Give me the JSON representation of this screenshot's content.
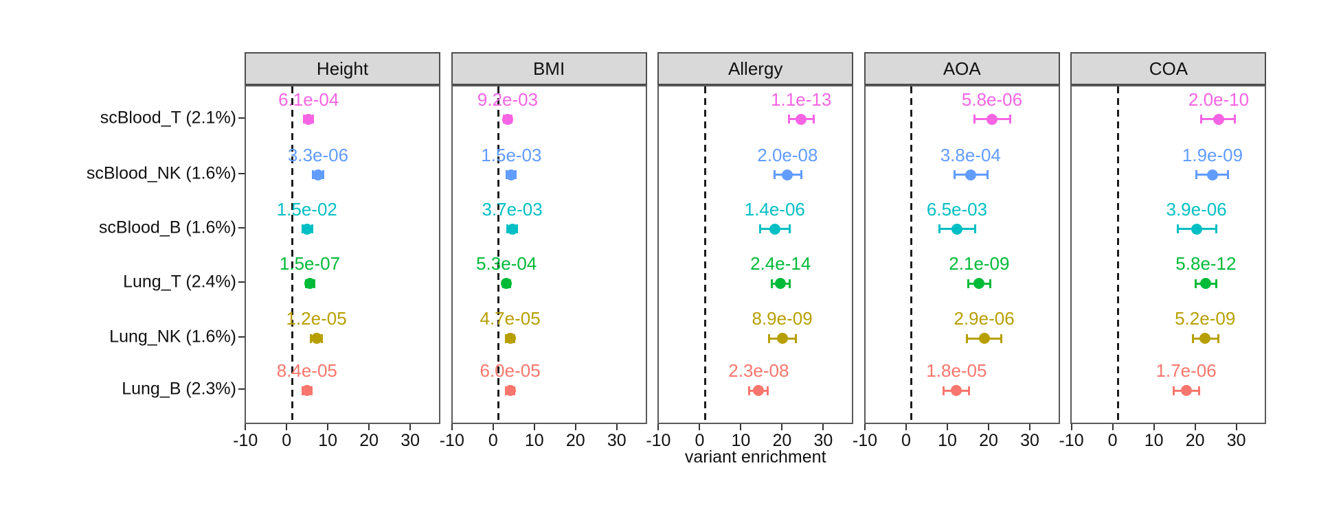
{
  "chart_data": {
    "type": "scatter",
    "subtype": "faceted_dot_plot_with_error_bars",
    "title": "",
    "xlabel": "variant enrichment",
    "ylabel": "",
    "x_ticks": [
      -10,
      0,
      10,
      20,
      30
    ],
    "xlim": [
      -10.2,
      37.3
    ],
    "reference_line_x": 1,
    "grid": "off",
    "strip_background": "#d9d9d9",
    "categories": [
      "scBlood_T (2.1%)",
      "scBlood_NK (1.6%)",
      "scBlood_B (1.6%)",
      "Lung_T (2.4%)",
      "Lung_NK (1.6%)",
      "Lung_B (2.3%)"
    ],
    "category_colors": [
      "#F564E3",
      "#619CFF",
      "#00BFC4",
      "#00BA38",
      "#B79F00",
      "#F8766D"
    ],
    "facets": [
      "Height",
      "BMI",
      "Allergy",
      "AOA",
      "COA"
    ],
    "series": [
      {
        "name": "Height",
        "points": [
          {
            "category": "scBlood_T (2.1%)",
            "x": 5.0,
            "ci": [
              3.9,
              6.1
            ],
            "p_label": "6.1e-04"
          },
          {
            "category": "scBlood_NK (1.6%)",
            "x": 7.3,
            "ci": [
              6.1,
              8.6
            ],
            "p_label": "3.3e-06"
          },
          {
            "category": "scBlood_B (1.6%)",
            "x": 4.6,
            "ci": [
              3.5,
              5.8
            ],
            "p_label": "1.5e-02"
          },
          {
            "category": "Lung_T (2.4%)",
            "x": 5.3,
            "ci": [
              4.3,
              6.3
            ],
            "p_label": "1.5e-07"
          },
          {
            "category": "Lung_NK (1.6%)",
            "x": 6.9,
            "ci": [
              5.6,
              8.2
            ],
            "p_label": "1.2e-05"
          },
          {
            "category": "Lung_B (2.3%)",
            "x": 4.6,
            "ci": [
              3.5,
              5.7
            ],
            "p_label": "8.4e-05"
          }
        ]
      },
      {
        "name": "BMI",
        "points": [
          {
            "category": "scBlood_T (2.1%)",
            "x": 3.2,
            "ci": [
              2.3,
              4.1
            ],
            "p_label": "9.2e-03"
          },
          {
            "category": "scBlood_NK (1.6%)",
            "x": 4.1,
            "ci": [
              3.0,
              5.2
            ],
            "p_label": "1.5e-03"
          },
          {
            "category": "scBlood_B (1.6%)",
            "x": 4.3,
            "ci": [
              3.1,
              5.5
            ],
            "p_label": "3.7e-03"
          },
          {
            "category": "Lung_T (2.4%)",
            "x": 2.9,
            "ci": [
              2.1,
              3.8
            ],
            "p_label": "5.3e-04"
          },
          {
            "category": "Lung_NK (1.6%)",
            "x": 3.8,
            "ci": [
              2.8,
              4.8
            ],
            "p_label": "4.7e-05"
          },
          {
            "category": "Lung_B (2.3%)",
            "x": 3.8,
            "ci": [
              2.8,
              4.8
            ],
            "p_label": "6.0e-05"
          }
        ]
      },
      {
        "name": "Allergy",
        "points": [
          {
            "category": "scBlood_T (2.1%)",
            "x": 24.3,
            "ci": [
              21.4,
              27.4
            ],
            "p_label": "1.1e-13"
          },
          {
            "category": "scBlood_NK (1.6%)",
            "x": 21.0,
            "ci": [
              17.8,
              24.3
            ],
            "p_label": "2.0e-08"
          },
          {
            "category": "scBlood_B (1.6%)",
            "x": 17.9,
            "ci": [
              14.4,
              21.5
            ],
            "p_label": "1.4e-06"
          },
          {
            "category": "Lung_T (2.4%)",
            "x": 19.3,
            "ci": [
              17.2,
              21.5
            ],
            "p_label": "2.4e-14"
          },
          {
            "category": "Lung_NK (1.6%)",
            "x": 19.7,
            "ci": [
              16.6,
              23.0
            ],
            "p_label": "8.9e-09"
          },
          {
            "category": "Lung_B (2.3%)",
            "x": 14.0,
            "ci": [
              11.7,
              16.2
            ],
            "p_label": "2.3e-08"
          }
        ]
      },
      {
        "name": "AOA",
        "points": [
          {
            "category": "scBlood_T (2.1%)",
            "x": 20.5,
            "ci": [
              16.2,
              24.9
            ],
            "p_label": "5.8e-06"
          },
          {
            "category": "scBlood_NK (1.6%)",
            "x": 15.3,
            "ci": [
              11.5,
              19.4
            ],
            "p_label": "3.8e-04"
          },
          {
            "category": "scBlood_B (1.6%)",
            "x": 12.0,
            "ci": [
              7.8,
              16.4
            ],
            "p_label": "6.5e-03"
          },
          {
            "category": "Lung_T (2.4%)",
            "x": 17.4,
            "ci": [
              14.8,
              20.1
            ],
            "p_label": "2.1e-09"
          },
          {
            "category": "Lung_NK (1.6%)",
            "x": 18.6,
            "ci": [
              14.5,
              22.7
            ],
            "p_label": "2.9e-06"
          },
          {
            "category": "Lung_B (2.3%)",
            "x": 11.9,
            "ci": [
              8.8,
              14.9
            ],
            "p_label": "1.8e-05"
          }
        ]
      },
      {
        "name": "COA",
        "points": [
          {
            "category": "scBlood_T (2.1%)",
            "x": 25.4,
            "ci": [
              21.2,
              29.4
            ],
            "p_label": "2.0e-10"
          },
          {
            "category": "scBlood_NK (1.6%)",
            "x": 23.9,
            "ci": [
              20.0,
              27.6
            ],
            "p_label": "1.9e-09"
          },
          {
            "category": "scBlood_B (1.6%)",
            "x": 20.0,
            "ci": [
              15.5,
              24.8
            ],
            "p_label": "3.9e-06"
          },
          {
            "category": "Lung_T (2.4%)",
            "x": 22.3,
            "ci": [
              19.8,
              24.9
            ],
            "p_label": "5.8e-12"
          },
          {
            "category": "Lung_NK (1.6%)",
            "x": 22.1,
            "ci": [
              19.2,
              25.4
            ],
            "p_label": "5.2e-09"
          },
          {
            "category": "Lung_B (2.3%)",
            "x": 17.5,
            "ci": [
              14.5,
              20.7
            ],
            "p_label": "1.7e-06"
          }
        ]
      }
    ]
  }
}
